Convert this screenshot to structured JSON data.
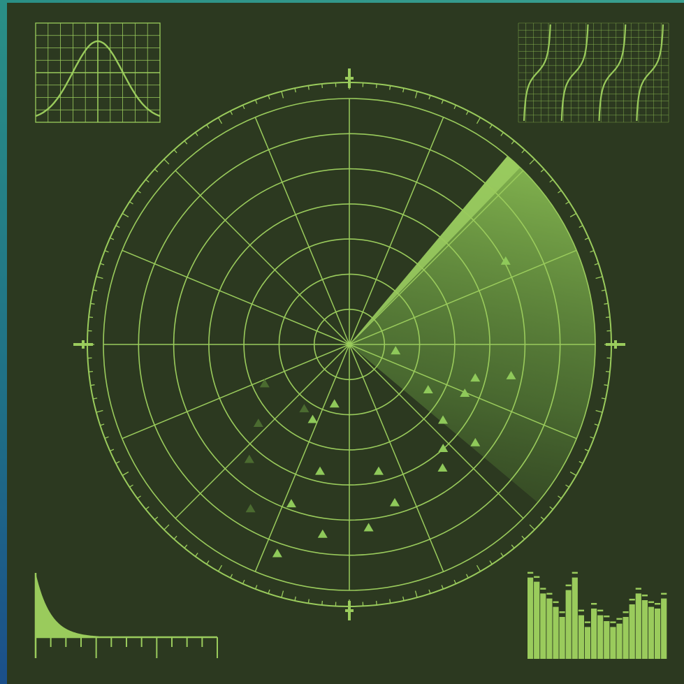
{
  "colors": {
    "background": "#2c3920",
    "line": "#9acb5c",
    "line_dim": "#8fbf52",
    "sweep": "#8cc653",
    "target": "#9acb5c",
    "frame_edge": "#2a8f86"
  },
  "radar": {
    "range_rings": 7,
    "radial_lines": 16,
    "sweep_heading_deg": 40,
    "sweep_width_deg": 90,
    "targets": [
      {
        "bearing_deg": 62,
        "range": 0.72,
        "lit": true
      },
      {
        "bearing_deg": 105,
        "range": 0.53,
        "lit": true
      },
      {
        "bearing_deg": 98,
        "range": 0.19,
        "lit": true
      },
      {
        "bearing_deg": 120,
        "range": 0.37,
        "lit": true
      },
      {
        "bearing_deg": 113,
        "range": 0.51,
        "lit": true
      },
      {
        "bearing_deg": 101,
        "range": 0.67,
        "lit": true
      },
      {
        "bearing_deg": 129,
        "range": 0.49,
        "lit": true
      },
      {
        "bearing_deg": 128,
        "range": 0.65,
        "lit": true
      },
      {
        "bearing_deg": 138,
        "range": 0.57,
        "lit": true
      },
      {
        "bearing_deg": 143,
        "range": 0.63,
        "lit": true
      },
      {
        "bearing_deg": 167,
        "range": 0.53,
        "lit": true
      },
      {
        "bearing_deg": 164,
        "range": 0.67,
        "lit": true
      },
      {
        "bearing_deg": 174,
        "range": 0.75,
        "lit": true
      },
      {
        "bearing_deg": 193,
        "range": 0.53,
        "lit": true
      },
      {
        "bearing_deg": 188,
        "range": 0.78,
        "lit": true
      },
      {
        "bearing_deg": 200,
        "range": 0.69,
        "lit": true
      },
      {
        "bearing_deg": 199,
        "range": 0.9,
        "lit": true
      },
      {
        "bearing_deg": 194,
        "range": 0.25,
        "lit": true
      },
      {
        "bearing_deg": 215,
        "range": 0.32,
        "lit": false
      },
      {
        "bearing_deg": 206,
        "range": 0.34,
        "lit": true
      },
      {
        "bearing_deg": 229,
        "range": 0.49,
        "lit": false
      },
      {
        "bearing_deg": 221,
        "range": 0.62,
        "lit": false
      },
      {
        "bearing_deg": 211,
        "range": 0.78,
        "lit": false
      },
      {
        "bearing_deg": 245,
        "range": 0.38,
        "lit": false
      }
    ]
  },
  "bar_meter": {
    "levels": [
      0.97,
      0.92,
      0.78,
      0.72,
      0.62,
      0.5,
      0.82,
      0.97,
      0.52,
      0.38,
      0.6,
      0.52,
      0.45,
      0.38,
      0.42,
      0.5,
      0.65,
      0.78,
      0.7,
      0.62,
      0.6,
      0.72
    ]
  },
  "decay_gauge": {
    "major_ticks": 4,
    "minor_ticks": 12
  }
}
